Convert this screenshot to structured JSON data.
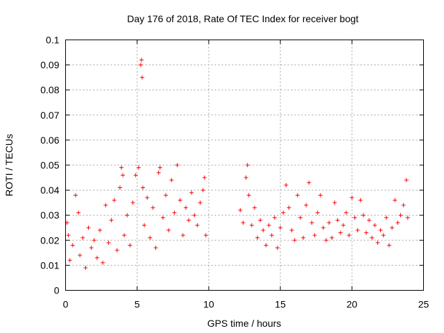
{
  "chart_data": {
    "type": "scatter",
    "title": "Day 176 of 2018, Rate Of TEC Index for receiver bogt",
    "xlabel": "GPS time / hours",
    "ylabel": "ROTI / TECUs",
    "xlim": [
      0,
      25
    ],
    "ylim": [
      0,
      0.1
    ],
    "xticks": [
      "0",
      "5",
      "10",
      "15",
      "20",
      "25"
    ],
    "yticks": [
      "0",
      "0.01",
      "0.02",
      "0.03",
      "0.04",
      "0.05",
      "0.06",
      "0.07",
      "0.08",
      "0.09",
      "0.1"
    ],
    "grid": true,
    "marker": "+",
    "series": [
      {
        "name": "ROTI",
        "color": "#ff0000",
        "x": [
          0.1,
          0.2,
          0.3,
          0.5,
          0.7,
          0.9,
          1.0,
          1.2,
          1.4,
          1.6,
          1.8,
          2.0,
          2.2,
          2.4,
          2.6,
          2.8,
          3.0,
          3.2,
          3.4,
          3.6,
          3.8,
          3.9,
          4.0,
          4.1,
          4.3,
          4.5,
          4.7,
          4.9,
          5.1,
          5.25,
          5.3,
          5.35,
          5.4,
          5.5,
          5.7,
          5.9,
          6.1,
          6.3,
          6.5,
          6.6,
          6.8,
          7.0,
          7.2,
          7.4,
          7.6,
          7.8,
          8.0,
          8.2,
          8.4,
          8.6,
          8.8,
          9.0,
          9.2,
          9.4,
          9.6,
          9.7,
          9.8,
          12.2,
          12.4,
          12.6,
          12.7,
          12.8,
          13.0,
          13.2,
          13.4,
          13.6,
          13.8,
          14.0,
          14.2,
          14.4,
          14.6,
          14.8,
          15.0,
          15.2,
          15.4,
          15.6,
          15.8,
          16.0,
          16.2,
          16.4,
          16.6,
          16.8,
          17.0,
          17.2,
          17.4,
          17.6,
          17.8,
          18.0,
          18.2,
          18.4,
          18.6,
          18.8,
          19.0,
          19.2,
          19.4,
          19.6,
          19.8,
          20.0,
          20.2,
          20.4,
          20.6,
          20.8,
          21.0,
          21.2,
          21.4,
          21.6,
          21.8,
          22.0,
          22.2,
          22.4,
          22.6,
          22.8,
          23.0,
          23.2,
          23.4,
          23.6,
          23.8,
          23.9
        ],
        "y": [
          0.027,
          0.022,
          0.012,
          0.018,
          0.038,
          0.031,
          0.014,
          0.021,
          0.009,
          0.025,
          0.017,
          0.02,
          0.013,
          0.024,
          0.011,
          0.034,
          0.019,
          0.028,
          0.036,
          0.016,
          0.041,
          0.049,
          0.046,
          0.022,
          0.03,
          0.018,
          0.035,
          0.046,
          0.049,
          0.09,
          0.092,
          0.085,
          0.041,
          0.026,
          0.037,
          0.021,
          0.033,
          0.017,
          0.047,
          0.049,
          0.029,
          0.038,
          0.024,
          0.044,
          0.031,
          0.05,
          0.036,
          0.022,
          0.033,
          0.028,
          0.039,
          0.03,
          0.026,
          0.035,
          0.04,
          0.045,
          0.022,
          0.032,
          0.027,
          0.045,
          0.05,
          0.038,
          0.026,
          0.033,
          0.021,
          0.028,
          0.024,
          0.018,
          0.026,
          0.022,
          0.029,
          0.017,
          0.025,
          0.031,
          0.042,
          0.033,
          0.024,
          0.02,
          0.038,
          0.029,
          0.021,
          0.034,
          0.043,
          0.027,
          0.022,
          0.031,
          0.038,
          0.025,
          0.02,
          0.027,
          0.021,
          0.035,
          0.028,
          0.023,
          0.026,
          0.031,
          0.022,
          0.037,
          0.029,
          0.024,
          0.036,
          0.03,
          0.023,
          0.028,
          0.021,
          0.026,
          0.019,
          0.024,
          0.022,
          0.029,
          0.018,
          0.025,
          0.036,
          0.027,
          0.03,
          0.034,
          0.044,
          0.029
        ]
      }
    ]
  }
}
